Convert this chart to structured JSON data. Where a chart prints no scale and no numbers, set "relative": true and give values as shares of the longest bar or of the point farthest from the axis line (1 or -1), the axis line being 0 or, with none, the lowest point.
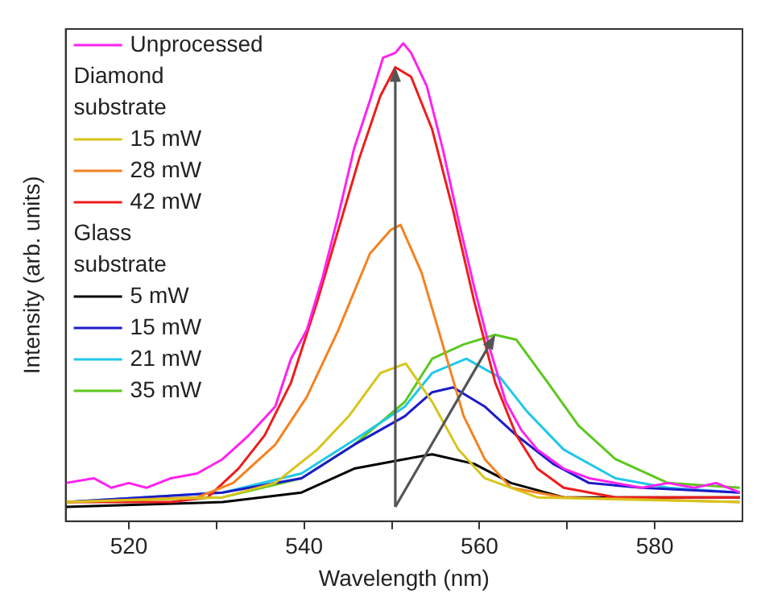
{
  "chart_data": {
    "type": "line",
    "xlabel": "Wavelength (nm)",
    "ylabel": "Intensity (arb. units)",
    "relative": true,
    "xlim": [
      512.8,
      590
    ],
    "xticks": [
      520,
      {
        "value": 530,
        "label": null
      },
      540,
      {
        "value": 550,
        "label": null
      },
      560,
      {
        "value": 570,
        "label": null
      },
      580
    ],
    "legend": "top left",
    "annotations": [
      "Diamond substrate",
      "Glass substrate"
    ],
    "series": [
      {
        "name": "Unprocessed",
        "color": "#ff22ee",
        "x": [
          512.8,
          516,
          518,
          520,
          522,
          524.8,
          527.8,
          530.7,
          533.7,
          536.7,
          538.5,
          540.3,
          542.1,
          543.9,
          545.7,
          547.5,
          549,
          550.4,
          551.3,
          552.2,
          554,
          555.8,
          557.6,
          559.4,
          561.2,
          563,
          564.8,
          566.6,
          569.6,
          572.5,
          575.5,
          578.5,
          581.5,
          584.5,
          587,
          589.7
        ],
        "values": [
          0.08,
          0.09,
          0.07,
          0.08,
          0.07,
          0.09,
          0.1,
          0.13,
          0.18,
          0.24,
          0.34,
          0.4,
          0.51,
          0.64,
          0.78,
          0.88,
          0.97,
          0.98,
          1.0,
          0.98,
          0.91,
          0.78,
          0.63,
          0.49,
          0.36,
          0.25,
          0.19,
          0.15,
          0.11,
          0.09,
          0.08,
          0.07,
          0.08,
          0.07,
          0.08,
          0.06
        ]
      },
      {
        "name": "15 mW",
        "color": "#d8c41c",
        "x": [
          512.8,
          530.7,
          536.7,
          541.5,
          545.1,
          548.7,
          551.6,
          554.6,
          557.6,
          560.6,
          566.6,
          589.7
        ],
        "values": [
          0.04,
          0.05,
          0.08,
          0.15,
          0.22,
          0.31,
          0.33,
          0.25,
          0.15,
          0.09,
          0.05,
          0.04
        ]
      },
      {
        "name": "28 mW",
        "color": "#f5821f",
        "x": [
          512.8,
          527.8,
          531.9,
          536.7,
          540.3,
          543.9,
          547.5,
          549.9,
          551,
          553.4,
          555.8,
          558.2,
          560.6,
          563.6,
          569.6,
          589.7
        ],
        "values": [
          0.04,
          0.05,
          0.08,
          0.16,
          0.26,
          0.4,
          0.56,
          0.61,
          0.62,
          0.52,
          0.37,
          0.22,
          0.13,
          0.07,
          0.05,
          0.04
        ]
      },
      {
        "name": "42 mW",
        "color": "#ee1c1c",
        "x": [
          512.8,
          524.8,
          529,
          532.5,
          535.5,
          538.5,
          541.5,
          543.9,
          546.3,
          548.7,
          550.4,
          552.2,
          554.6,
          557,
          559.4,
          561.8,
          564.2,
          566.6,
          569.6,
          575.5,
          589.7
        ],
        "values": [
          0.04,
          0.04,
          0.05,
          0.11,
          0.18,
          0.29,
          0.46,
          0.61,
          0.76,
          0.89,
          0.95,
          0.93,
          0.82,
          0.65,
          0.46,
          0.29,
          0.18,
          0.11,
          0.07,
          0.05,
          0.05
        ]
      },
      {
        "name": "5 mW",
        "color": "#000000",
        "x": [
          512.8,
          530.7,
          539.7,
          545.7,
          551.5,
          554.6,
          559.4,
          563.6,
          569.6,
          589.7
        ],
        "values": [
          0.03,
          0.04,
          0.06,
          0.11,
          0.13,
          0.14,
          0.12,
          0.08,
          0.05,
          0.05
        ]
      },
      {
        "name": "15 mW",
        "color": "#1c1cc8",
        "x": [
          512.8,
          530.7,
          539.7,
          545.7,
          551.5,
          554.6,
          557,
          560.6,
          564.2,
          568.4,
          572.5,
          578.5,
          589.7
        ],
        "values": [
          0.04,
          0.06,
          0.09,
          0.16,
          0.22,
          0.27,
          0.28,
          0.24,
          0.18,
          0.12,
          0.08,
          0.07,
          0.06
        ]
      },
      {
        "name": "21 mW",
        "color": "#22c8e8",
        "x": [
          512.8,
          530.7,
          539.7,
          545.7,
          551.5,
          554.6,
          558.5,
          562.4,
          565.4,
          569.6,
          575.5,
          581.5,
          589.7
        ],
        "values": [
          0.04,
          0.06,
          0.1,
          0.17,
          0.24,
          0.31,
          0.34,
          0.3,
          0.23,
          0.15,
          0.09,
          0.07,
          0.06
        ]
      },
      {
        "name": "35 mW",
        "color": "#5cc81e",
        "x": [
          512.8,
          530.7,
          539.7,
          545.7,
          551.5,
          554.6,
          558.2,
          561.8,
          564.2,
          567.8,
          571.3,
          575.5,
          581.5,
          589.7
        ],
        "values": [
          0.04,
          0.05,
          0.09,
          0.16,
          0.25,
          0.34,
          0.37,
          0.39,
          0.38,
          0.29,
          0.2,
          0.13,
          0.08,
          0.07
        ]
      }
    ]
  }
}
